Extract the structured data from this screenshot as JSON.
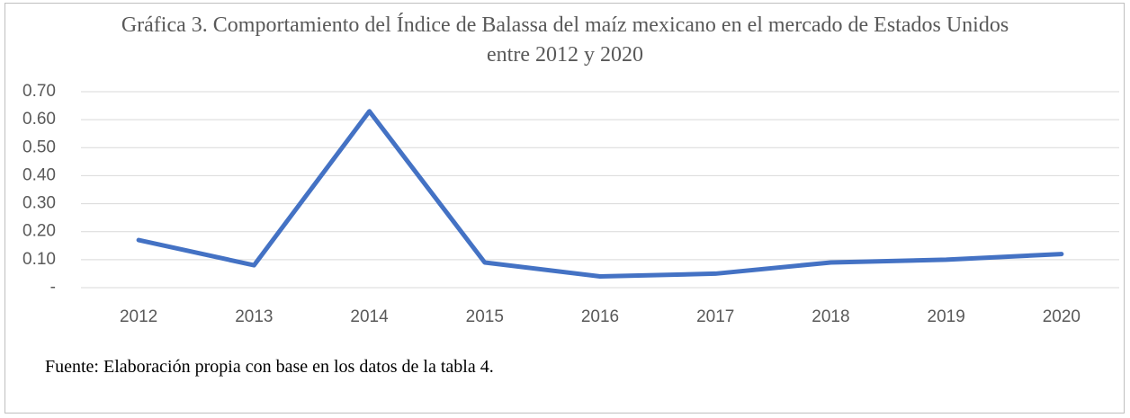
{
  "chart_data": {
    "type": "line",
    "title": "Gráfica 3. Comportamiento del Índice de Balassa del maíz mexicano en el mercado de Estados Unidos entre 2012 y 2020",
    "categories": [
      "2012",
      "2013",
      "2014",
      "2015",
      "2016",
      "2017",
      "2018",
      "2019",
      "2020"
    ],
    "series": [
      {
        "name": "Índice de Balassa",
        "color": "#4472c4",
        "values": [
          0.17,
          0.08,
          0.63,
          0.09,
          0.04,
          0.05,
          0.09,
          0.1,
          0.12
        ]
      }
    ],
    "ylim": [
      0,
      0.7
    ],
    "yticks": [
      {
        "value": 0,
        "label": "-"
      },
      {
        "value": 0.1,
        "label": "0.10"
      },
      {
        "value": 0.2,
        "label": "0.20"
      },
      {
        "value": 0.3,
        "label": "0.30"
      },
      {
        "value": 0.4,
        "label": "0.40"
      },
      {
        "value": 0.5,
        "label": "0.50"
      },
      {
        "value": 0.6,
        "label": "0.60"
      },
      {
        "value": 0.7,
        "label": "0.70"
      }
    ],
    "grid": true,
    "source": "Fuente: Elaboración propia con base en los datos de la tabla 4."
  }
}
